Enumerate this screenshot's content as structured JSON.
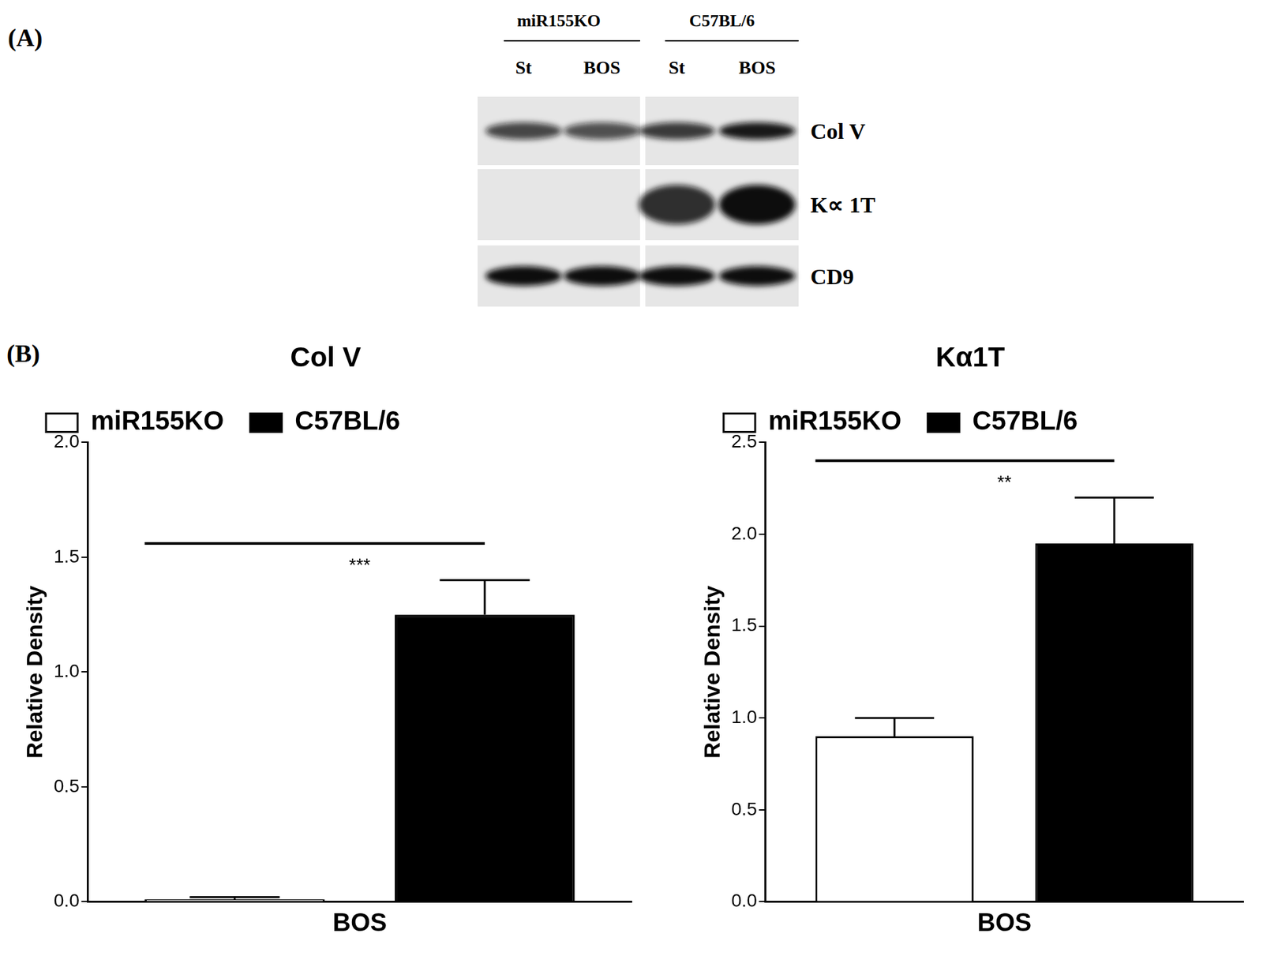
{
  "panel_a": {
    "label": "(A)",
    "groups": [
      {
        "name": "miR155KO",
        "lanes": [
          "St",
          "BOS"
        ]
      },
      {
        "name": "C57BL/6",
        "lanes": [
          "St",
          "BOS"
        ]
      }
    ],
    "rows": [
      "Col V",
      "K∝ 1T",
      "CD9"
    ]
  },
  "panel_b": {
    "label": "(B)"
  },
  "chart_data": [
    {
      "type": "bar",
      "title": "Col V",
      "y_label": "Relative Density",
      "categories": [
        "BOS"
      ],
      "series": [
        {
          "name": "miR155KO",
          "color": "#ffffff",
          "values": [
            0.01
          ],
          "errors": [
            0.01
          ]
        },
        {
          "name": "C57BL/6",
          "color": "#000000",
          "values": [
            1.25
          ],
          "errors": [
            0.15
          ]
        }
      ],
      "ylim": [
        0,
        2
      ],
      "yticks": [
        {
          "value": 0,
          "label": "0.0"
        },
        {
          "value": 0.5,
          "label": "0.5"
        },
        {
          "value": 1,
          "label": "1.0"
        },
        {
          "value": 1.5,
          "label": "1.5"
        },
        {
          "value": 2,
          "label": "2.0"
        }
      ],
      "grid": false,
      "legend": "top",
      "annotations": [
        {
          "text": "***",
          "between": [
            "miR155KO",
            "C57BL/6"
          ]
        }
      ]
    },
    {
      "type": "bar",
      "title": "Kα1T",
      "y_label": "Relative Density",
      "categories": [
        "BOS"
      ],
      "series": [
        {
          "name": "miR155KO",
          "color": "#ffffff",
          "values": [
            0.9
          ],
          "errors": [
            0.1
          ]
        },
        {
          "name": "C57BL/6",
          "color": "#000000",
          "values": [
            1.95
          ],
          "errors": [
            0.25
          ]
        }
      ],
      "ylim": [
        0,
        2.5
      ],
      "yticks": [
        {
          "value": 0,
          "label": "0.0"
        },
        {
          "value": 0.5,
          "label": "0.5"
        },
        {
          "value": 1,
          "label": "1.0"
        },
        {
          "value": 1.5,
          "label": "1.5"
        },
        {
          "value": 2,
          "label": "2.0"
        },
        {
          "value": 2.5,
          "label": "2.5"
        }
      ],
      "grid": false,
      "legend": "top",
      "annotations": [
        {
          "text": "**",
          "between": [
            "miR155KO",
            "C57BL/6"
          ]
        }
      ]
    }
  ]
}
